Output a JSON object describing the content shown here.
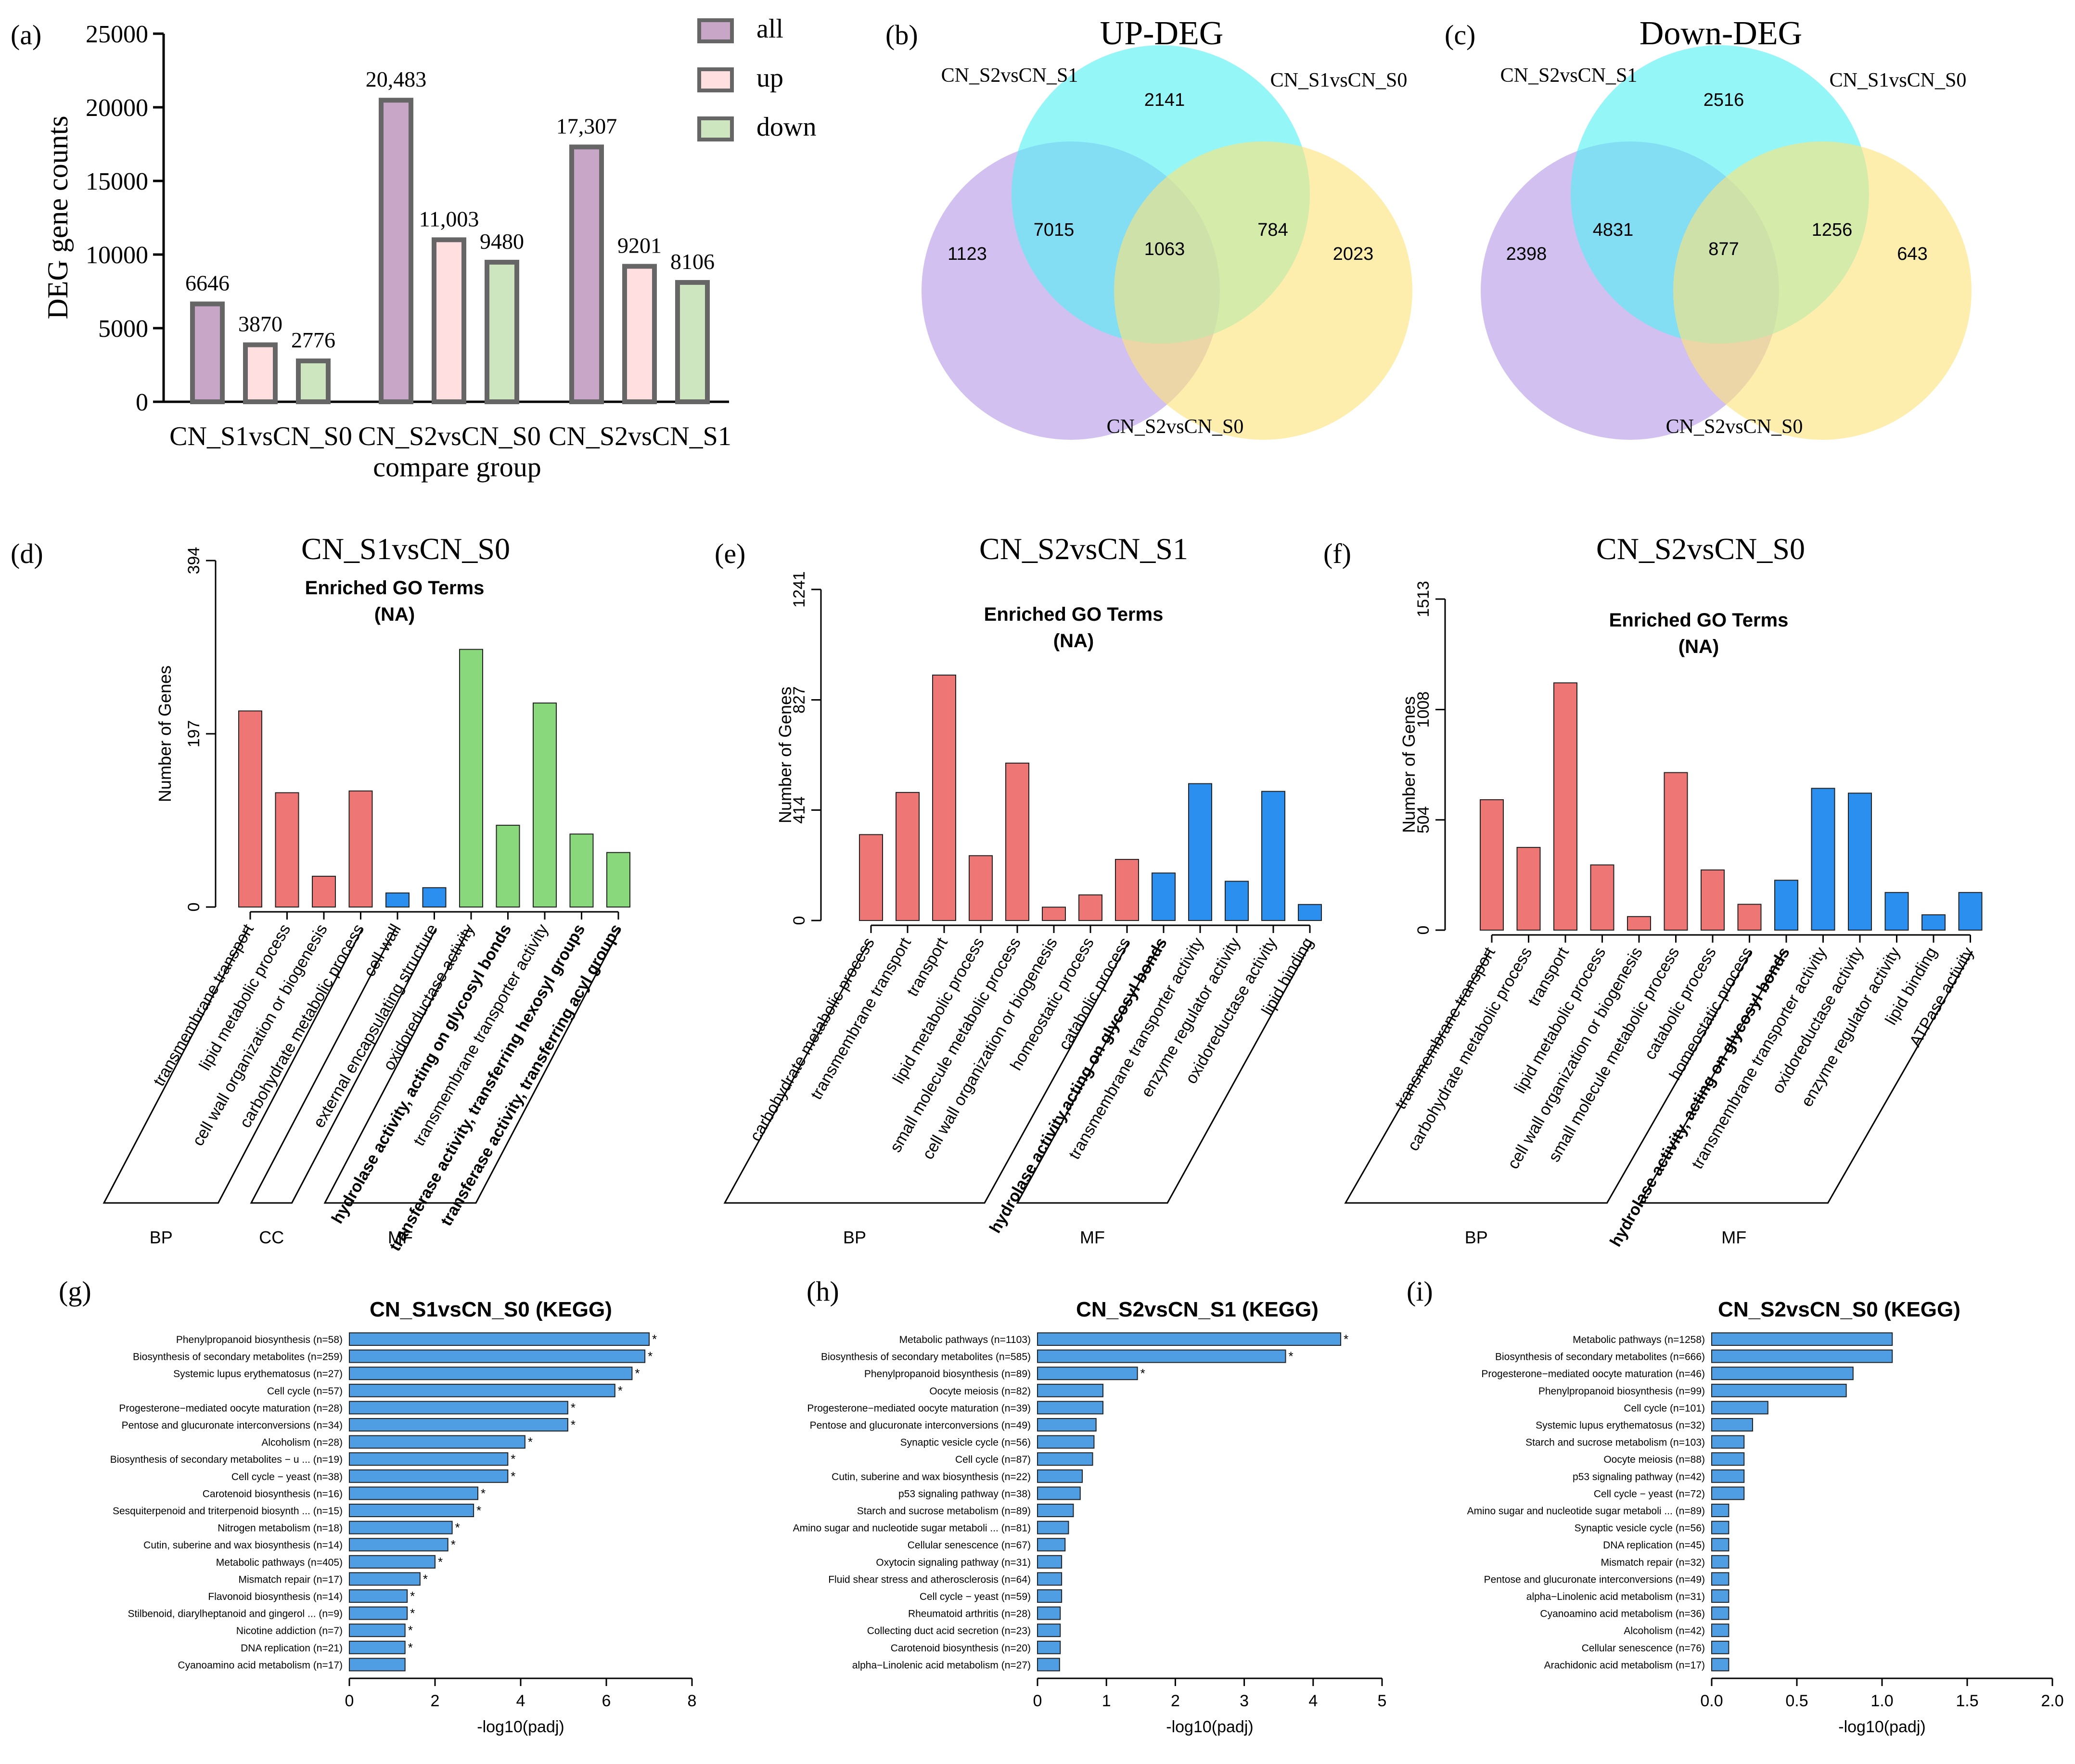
{
  "colors": {
    "all": "#c8a6c8",
    "up": "#ffdfe0",
    "down": "#cde6c0",
    "bar_stroke": "#666666",
    "bp": "#ee7674",
    "cc": "#2a8fef",
    "mf": "#8ad87c",
    "mf_blue": "#2a8fef",
    "kegg": "#4f9de3",
    "venn_purple": "#b69ae8",
    "venn_cyan": "#54f0f4",
    "venn_yellow": "#fbe37a"
  },
  "chart_data": [
    {
      "id": "a",
      "panel_label": "(a)",
      "type": "bar",
      "title": "",
      "xlabel": "compare group",
      "ylabel": "DEG gene counts",
      "ylim": [
        0,
        25000
      ],
      "yticks": [
        0,
        5000,
        10000,
        15000,
        20000,
        25000
      ],
      "categories": [
        "CN_S1vsCN_S0",
        "CN_S2vsCN_S0",
        "CN_S2vsCN_S1"
      ],
      "series": [
        {
          "name": "all",
          "values": [
            6646,
            20483,
            17307
          ],
          "labels": [
            "6646",
            "20,483",
            "17,307"
          ]
        },
        {
          "name": "up",
          "values": [
            3870,
            11003,
            9201
          ],
          "labels": [
            "3870",
            "11,003",
            "9201"
          ]
        },
        {
          "name": "down",
          "values": [
            2776,
            9480,
            8106
          ],
          "labels": [
            "2776",
            "9480",
            "8106"
          ]
        }
      ],
      "legend": [
        "all",
        "up",
        "down"
      ],
      "legend_position": "top-right"
    },
    {
      "id": "b",
      "panel_label": "(b)",
      "type": "venn",
      "title": "UP-DEG",
      "sets": [
        "CN_S2vsCN_S1",
        "CN_S1vsCN_S0",
        "CN_S2vsCN_S0"
      ],
      "regions": {
        "s2s1_only": "1123",
        "s1s0_only": "2141",
        "s2s0_only": "2023",
        "s2s1_s1s0": "7015",
        "s1s0_s2s0": "784",
        "all_three": "1063"
      }
    },
    {
      "id": "c",
      "panel_label": "(c)",
      "type": "venn",
      "title": "Down-DEG",
      "sets": [
        "CN_S2vsCN_S1",
        "CN_S1vsCN_S0",
        "CN_S2vsCN_S0"
      ],
      "regions": {
        "s2s1_only": "2398",
        "s1s0_only": "2516",
        "s2s0_only": "643",
        "s2s1_s1s0": "4831",
        "s1s0_s2s0": "1256",
        "all_three": "877"
      }
    },
    {
      "id": "d",
      "panel_label": "(d)",
      "type": "bar",
      "title": "CN_S1vsCN_S0",
      "subtitle": "Enriched GO Terms",
      "subtitle2": "(NA)",
      "ylabel": "Number of Genes",
      "ylim": [
        0,
        394
      ],
      "yticks": [
        0,
        197,
        394
      ],
      "categories": [
        "transmembrane transport",
        "lipid metabolic process",
        "cell wall organization or biogenesis",
        "carbohydrate metabolic process",
        "cell wall",
        "external encapsulating structure",
        "oxidoreductase activity",
        "hydrolase activity, acting on glycosyl bonds",
        "transmembrane transporter activity",
        "transferase activity, transferring hexosyl groups",
        "transferase activity, transferring acyl groups"
      ],
      "values": [
        223,
        130,
        35,
        132,
        16,
        22,
        293,
        93,
        232,
        83,
        62
      ],
      "groups": [
        "bp",
        "bp",
        "bp",
        "bp",
        "cc",
        "cc",
        "mf",
        "mf",
        "mf",
        "mf",
        "mf"
      ],
      "bold_labels": [
        7,
        9,
        10
      ],
      "group_labels": [
        {
          "name": "BP",
          "start": 0,
          "end": 3
        },
        {
          "name": "CC",
          "start": 4,
          "end": 5
        },
        {
          "name": "MF",
          "start": 6,
          "end": 10
        }
      ]
    },
    {
      "id": "e",
      "panel_label": "(e)",
      "type": "bar",
      "title": "CN_S2vsCN_S1",
      "subtitle": "Enriched GO Terms",
      "subtitle2": "(NA)",
      "ylabel": "Number of Genes",
      "ylim": [
        0,
        1241
      ],
      "yticks": [
        0,
        414,
        827,
        1241
      ],
      "categories": [
        "carbohydrate metabolic process",
        "transmembrane transport",
        "transport",
        "lipid metabolic process",
        "small molecule metabolic process",
        "cell wall organization or biogenesis",
        "homeostatic process",
        "catabolic process",
        "hydrolase activity,acting on glycosyl bonds",
        "transmembrane transporter activity",
        "enzyme regulator activity",
        "oxidoreductase activity",
        "lipid binding"
      ],
      "values": [
        322,
        480,
        920,
        243,
        590,
        50,
        96,
        229,
        178,
        513,
        147,
        484,
        60
      ],
      "groups": [
        "bp",
        "bp",
        "bp",
        "bp",
        "bp",
        "bp",
        "bp",
        "bp",
        "mf_blue",
        "mf_blue",
        "mf_blue",
        "mf_blue",
        "mf_blue"
      ],
      "bold_labels": [
        8
      ],
      "group_labels": [
        {
          "name": "BP",
          "start": 0,
          "end": 7
        },
        {
          "name": "MF",
          "start": 8,
          "end": 12
        }
      ]
    },
    {
      "id": "f",
      "panel_label": "(f)",
      "type": "bar",
      "title": "CN_S2vsCN_S0",
      "subtitle": "Enriched GO Terms",
      "subtitle2": "(NA)",
      "ylabel": "Number of Genes",
      "ylim": [
        0,
        1513
      ],
      "yticks": [
        0,
        504,
        1008,
        1513
      ],
      "categories": [
        "transmembrane transport",
        "carbohydrate metabolic process",
        "transport",
        "lipid metabolic process",
        "cell wall organization or biogenesis",
        "small molecule metabolic process",
        "catabolic process",
        "homeostatic process",
        "hydrolase activity, acting on glycosyl bonds",
        "transmembrane transporter activity",
        "oxidoreductase activity",
        "enzyme regulator activity",
        "lipid binding",
        "ATPase activity"
      ],
      "values": [
        596,
        378,
        1130,
        298,
        62,
        720,
        275,
        118,
        228,
        648,
        626,
        172,
        70,
        172
      ],
      "groups": [
        "bp",
        "bp",
        "bp",
        "bp",
        "bp",
        "bp",
        "bp",
        "bp",
        "mf_blue",
        "mf_blue",
        "mf_blue",
        "mf_blue",
        "mf_blue",
        "mf_blue"
      ],
      "bold_labels": [
        8
      ],
      "group_labels": [
        {
          "name": "BP",
          "start": 0,
          "end": 7
        },
        {
          "name": "MF",
          "start": 8,
          "end": 13
        }
      ]
    },
    {
      "id": "g",
      "panel_label": "(g)",
      "type": "hbar",
      "title": "CN_S1vsCN_S0 (KEGG)",
      "xlabel": "-log10(padj)",
      "xlim": [
        0,
        8
      ],
      "xticks": [
        "0",
        "2",
        "4",
        "6",
        "8"
      ],
      "categories": [
        "Phenylpropanoid biosynthesis (n=58)",
        "Biosynthesis of secondary metabolites (n=259)",
        "Systemic lupus erythematosus (n=27)",
        "Cell cycle (n=57)",
        "Progesterone−mediated oocyte maturation (n=28)",
        "Pentose and glucuronate interconversions (n=34)",
        "Alcoholism (n=28)",
        "Biosynthesis of secondary metabolites − u ... (n=19)",
        "Cell cycle − yeast (n=38)",
        "Carotenoid biosynthesis (n=16)",
        "Sesquiterpenoid and triterpenoid biosynth ... (n=15)",
        "Nitrogen metabolism (n=18)",
        "Cutin, suberine and wax biosynthesis (n=14)",
        "Metabolic pathways (n=405)",
        "Mismatch repair (n=17)",
        "Flavonoid biosynthesis (n=14)",
        "Stilbenoid, diarylheptanoid and gingerol  ... (n=9)",
        "Nicotine addiction (n=7)",
        "DNA replication (n=21)",
        "Cyanoamino acid metabolism (n=17)"
      ],
      "values": [
        7.0,
        6.9,
        6.6,
        6.2,
        5.1,
        5.1,
        4.1,
        3.7,
        3.7,
        3.0,
        2.9,
        2.4,
        2.3,
        2.0,
        1.65,
        1.35,
        1.35,
        1.3,
        1.3,
        1.3
      ],
      "significant": [
        1,
        1,
        1,
        1,
        1,
        1,
        1,
        1,
        1,
        1,
        1,
        1,
        1,
        1,
        1,
        1,
        1,
        1,
        1,
        0
      ]
    },
    {
      "id": "h",
      "panel_label": "(h)",
      "type": "hbar",
      "title": "CN_S2vsCN_S1 (KEGG)",
      "xlabel": "-log10(padj)",
      "xlim": [
        0,
        5
      ],
      "xticks": [
        "0",
        "1",
        "2",
        "3",
        "4",
        "5"
      ],
      "categories": [
        "Metabolic pathways (n=1103)",
        "Biosynthesis of secondary metabolites (n=585)",
        "Phenylpropanoid biosynthesis (n=89)",
        "Oocyte meiosis (n=82)",
        "Progesterone−mediated oocyte maturation (n=39)",
        "Pentose and glucuronate interconversions (n=49)",
        "Synaptic vesicle cycle (n=56)",
        "Cell cycle (n=87)",
        "Cutin, suberine and wax biosynthesis (n=22)",
        "p53 signaling pathway (n=38)",
        "Starch and sucrose metabolism (n=89)",
        "Amino sugar and nucleotide sugar metaboli ... (n=81)",
        "Cellular senescence (n=67)",
        "Oxytocin signaling pathway (n=31)",
        "Fluid shear stress and atherosclerosis (n=64)",
        "Cell cycle − yeast (n=59)",
        "Rheumatoid arthritis (n=28)",
        "Collecting duct acid secretion (n=23)",
        "Carotenoid biosynthesis (n=20)",
        "alpha−Linolenic acid metabolism (n=27)"
      ],
      "values": [
        4.4,
        3.6,
        1.45,
        0.95,
        0.95,
        0.85,
        0.82,
        0.8,
        0.65,
        0.62,
        0.52,
        0.45,
        0.4,
        0.35,
        0.35,
        0.35,
        0.33,
        0.33,
        0.33,
        0.32
      ],
      "significant": [
        1,
        1,
        1,
        0,
        0,
        0,
        0,
        0,
        0,
        0,
        0,
        0,
        0,
        0,
        0,
        0,
        0,
        0,
        0,
        0
      ]
    },
    {
      "id": "i",
      "panel_label": "(i)",
      "type": "hbar",
      "title": "CN_S2vsCN_S0 (KEGG)",
      "xlabel": "-log10(padj)",
      "xlim": [
        0,
        2
      ],
      "xticks": [
        "0.0",
        "0.5",
        "1.0",
        "1.5",
        "2.0"
      ],
      "categories": [
        "Metabolic pathways (n=1258)",
        "Biosynthesis of secondary metabolites (n=666)",
        "Progesterone−mediated oocyte maturation (n=46)",
        "Phenylpropanoid biosynthesis (n=99)",
        "Cell cycle (n=101)",
        "Systemic lupus erythematosus (n=32)",
        "Starch and sucrose metabolism (n=103)",
        "Oocyte meiosis (n=88)",
        "p53 signaling pathway (n=42)",
        "Cell cycle − yeast (n=72)",
        "Amino sugar and nucleotide sugar metaboli ... (n=89)",
        "Synaptic vesicle cycle (n=56)",
        "DNA replication (n=45)",
        "Mismatch repair (n=32)",
        "Pentose and glucuronate interconversions (n=49)",
        "alpha−Linolenic acid metabolism (n=31)",
        "Cyanoamino acid metabolism (n=36)",
        "Alcoholism (n=42)",
        "Cellular senescence (n=76)",
        "Arachidonic acid metabolism (n=17)"
      ],
      "values": [
        1.06,
        1.06,
        0.83,
        0.79,
        0.33,
        0.24,
        0.19,
        0.19,
        0.19,
        0.19,
        0.1,
        0.1,
        0.1,
        0.1,
        0.1,
        0.1,
        0.1,
        0.1,
        0.1,
        0.1
      ],
      "significant": [
        0,
        0,
        0,
        0,
        0,
        0,
        0,
        0,
        0,
        0,
        0,
        0,
        0,
        0,
        0,
        0,
        0,
        0,
        0,
        0
      ]
    }
  ]
}
